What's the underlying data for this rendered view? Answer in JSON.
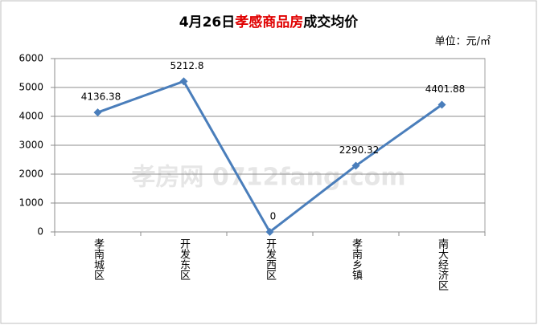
{
  "chart_data": {
    "type": "line",
    "title": [
      "4月26日",
      "孝感商品房",
      "成交均价"
    ],
    "title_colors": [
      "#000000",
      "#e00000",
      "#000000"
    ],
    "subtitle": "单位：元/㎡",
    "watermark": "孝房网 0712fang.com",
    "categories": [
      "孝南城区",
      "开发东区",
      "开发西区",
      "孝南乡镇",
      "南大经济区"
    ],
    "values": [
      4136.38,
      5212.8,
      0,
      2290.32,
      4401.88
    ],
    "color": "#4a7ebb",
    "ylim": [
      0,
      6000
    ],
    "yticks": [
      0,
      1000,
      2000,
      3000,
      4000,
      5000,
      6000
    ],
    "grid": true
  }
}
